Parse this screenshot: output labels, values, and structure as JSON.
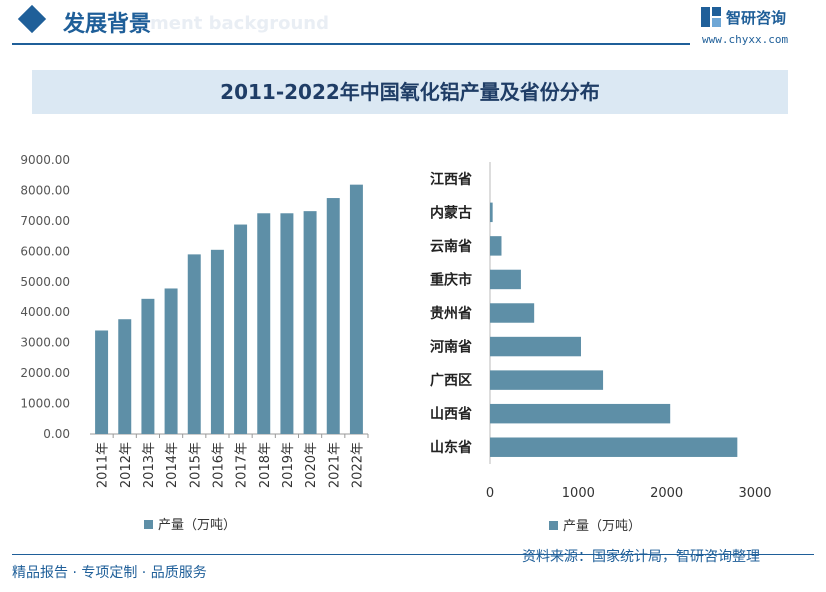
{
  "header": {
    "title": "发展背景",
    "ghost_text": "ment background",
    "brand_name": "智研咨询",
    "brand_url": "www.chyxx.com",
    "brand_icon": "zhiyan-logo-icon"
  },
  "chart_title": "2011-2022年中国氧化铝产量及省份分布",
  "colors": {
    "bar": "#5e8fa7",
    "accent": "#1f5f99",
    "title_bg": "#dbe8f3"
  },
  "chart_data": [
    {
      "type": "bar",
      "title": "",
      "categories": [
        "2011年",
        "2012年",
        "2013年",
        "2014年",
        "2015年",
        "2016年",
        "2017年",
        "2018年",
        "2019年",
        "2020年",
        "2021年",
        "2022年"
      ],
      "series": [
        {
          "name": "产量（万吨）",
          "values": [
            3400,
            3770,
            4440,
            4780,
            5900,
            6050,
            6880,
            7250,
            7250,
            7320,
            7750,
            8190
          ]
        }
      ],
      "ylim": [
        0,
        9000
      ],
      "yticks": [
        "0.00",
        "1000.00",
        "2000.00",
        "3000.00",
        "4000.00",
        "5000.00",
        "6000.00",
        "7000.00",
        "8000.00",
        "9000.00"
      ],
      "legend": "bottom",
      "grid": false
    },
    {
      "type": "bar",
      "orientation": "horizontal",
      "title": "",
      "categories": [
        "江西省",
        "内蒙古",
        "云南省",
        "重庆市",
        "贵州省",
        "河南省",
        "广西区",
        "山西省",
        "山东省"
      ],
      "series": [
        {
          "name": "产量（万吨）",
          "values": [
            0,
            30,
            130,
            350,
            500,
            1030,
            1280,
            2040,
            2800
          ]
        }
      ],
      "xlim": [
        0,
        3000
      ],
      "xticks": [
        "0",
        "1000",
        "2000",
        "3000"
      ],
      "legend": "bottom",
      "grid": false
    }
  ],
  "footer": {
    "left": "精品报告 · 专项定制 · 品质服务",
    "source": "资料来源：国家统计局，智研咨询整理"
  }
}
